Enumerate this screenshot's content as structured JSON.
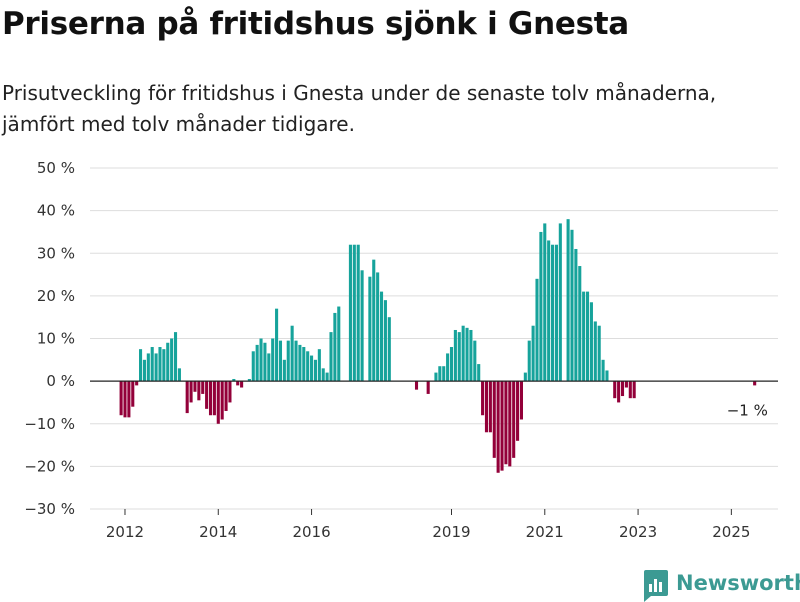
{
  "header": {
    "title": "Priserna på fritidshus sjönk i Gnesta",
    "subtitle": "Prisutveckling för fritidshus i Gnesta under de senaste tolv månaderna, jämfört med tolv månader tidigare."
  },
  "brand": {
    "name": "Newsworthy",
    "icon": "newsworthy-logo-icon"
  },
  "colors": {
    "positive": "#16a39b",
    "negative": "#930039",
    "grid": "#dddddd",
    "zero": "#222222"
  },
  "chart_data": {
    "type": "bar",
    "title": "Priserna på fritidshus sjönk i Gnesta",
    "subtitle": "Prisutveckling för fritidshus i Gnesta under de senaste tolv månaderna, jämfört med tolv månader tidigare.",
    "xlabel": "",
    "ylabel": "",
    "ylim": [
      -30,
      50
    ],
    "yticks": [
      50,
      40,
      30,
      20,
      10,
      0,
      -10,
      -20,
      -30
    ],
    "ytick_labels": [
      "50 %",
      "40 %",
      "30 %",
      "20 %",
      "10 %",
      "0 %",
      "−10 %",
      "−20 %",
      "−30 %"
    ],
    "xlim": [
      2011.25,
      2026.0
    ],
    "xticks": [
      2012,
      2014,
      2016,
      2019,
      2021,
      2023,
      2025
    ],
    "xtick_labels": [
      "2012",
      "2014",
      "2016",
      "2019",
      "2021",
      "2023",
      "2025"
    ],
    "grid": true,
    "annotation": {
      "text": "−1 %",
      "x": 2025.33,
      "y": -1
    },
    "series": [
      {
        "start": 2011.917,
        "step": 0.08333,
        "values": [
          -8,
          -8.5,
          -8.5,
          -6,
          -1,
          7.5,
          5,
          6.5,
          8,
          6.5,
          8,
          7.5,
          9,
          10,
          11.5,
          3,
          0,
          -7.5,
          -5,
          -2.5,
          -4.5,
          -3,
          -6.5,
          -8,
          -8,
          -10,
          -9,
          -7,
          -5,
          0.5,
          -1,
          -1.5,
          0,
          0.5,
          7,
          8.5,
          10,
          9,
          6.5,
          10,
          17,
          9.5,
          5,
          9.5,
          13,
          9.5,
          8.5,
          8,
          7,
          6,
          5,
          7.5,
          3,
          2,
          11.5,
          16,
          17.5,
          0,
          0,
          32,
          32,
          32,
          26,
          0,
          24.5,
          28.5,
          25.5,
          21,
          19,
          15,
          0,
          0,
          0,
          0,
          0,
          0,
          -2,
          0,
          0,
          -3,
          0,
          2,
          3.5,
          3.5,
          6.5,
          8,
          12,
          11.5,
          13,
          12.5,
          12,
          9.5,
          4,
          -8,
          -12,
          -12,
          -18,
          -21.5,
          -21,
          -19.5,
          -20,
          -18,
          -14,
          -9,
          2,
          9.5,
          13,
          24,
          35,
          37,
          33,
          32,
          32,
          37,
          0,
          38,
          35.5,
          31,
          27,
          21,
          21,
          18.5,
          14,
          13,
          5,
          2.5,
          0,
          -4,
          -5,
          -3.5,
          -1.5,
          -4,
          -4,
          0,
          0,
          0,
          0,
          0,
          0,
          0,
          0,
          0,
          0,
          0,
          0,
          0,
          0,
          0,
          0,
          0,
          0,
          0,
          0,
          0,
          0,
          0,
          0,
          0,
          0,
          0,
          0,
          0,
          0,
          -1
        ]
      }
    ]
  }
}
